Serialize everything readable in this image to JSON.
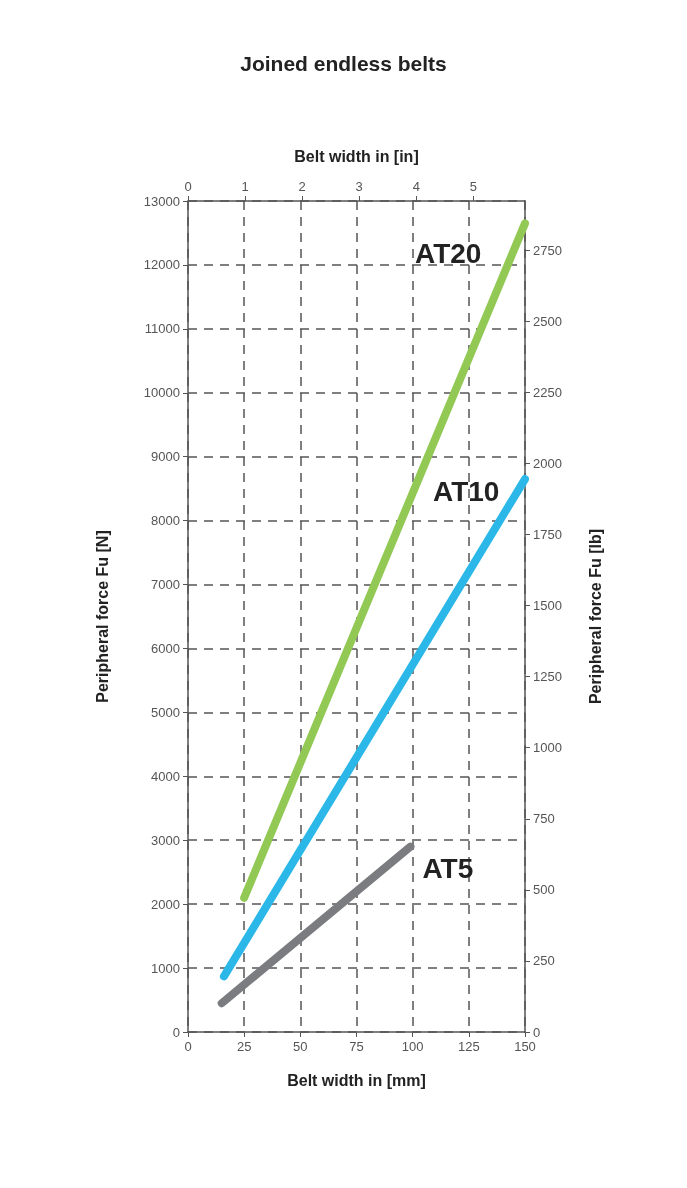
{
  "chart_data": {
    "type": "line",
    "title": "Joined endless belts",
    "xlabel": "Belt width in [mm]",
    "x2label": "Belt width in [in]",
    "ylabel": "Peripheral force Fu [N]",
    "y2label": "Peripheral force Fu [lb]",
    "xlim": [
      0,
      150
    ],
    "xticks": [
      0,
      25,
      50,
      75,
      100,
      125,
      150
    ],
    "x2lim": [
      0,
      5.906
    ],
    "x2ticks": [
      0,
      1,
      2,
      3,
      4,
      5
    ],
    "ylim": [
      0,
      13000
    ],
    "yticks": [
      0,
      1000,
      2000,
      3000,
      4000,
      5000,
      6000,
      7000,
      8000,
      9000,
      10000,
      11000,
      12000,
      13000
    ],
    "y2lim": [
      0,
      2923
    ],
    "y2ticks": [
      0,
      250,
      500,
      750,
      1000,
      1250,
      1500,
      1750,
      2000,
      2250,
      2500,
      2750
    ],
    "grid": true,
    "legend": false,
    "line_style": "solid",
    "series": [
      {
        "name": "AT20",
        "color": "#92c955",
        "x": [
          25,
          150
        ],
        "values": [
          2100,
          12650
        ]
      },
      {
        "name": "AT10",
        "color": "#2bb8e8",
        "x": [
          16,
          150
        ],
        "values": [
          870,
          8650
        ]
      },
      {
        "name": "AT5",
        "color": "#7b7c80",
        "x": [
          15,
          99
        ],
        "values": [
          450,
          2900
        ]
      }
    ]
  }
}
